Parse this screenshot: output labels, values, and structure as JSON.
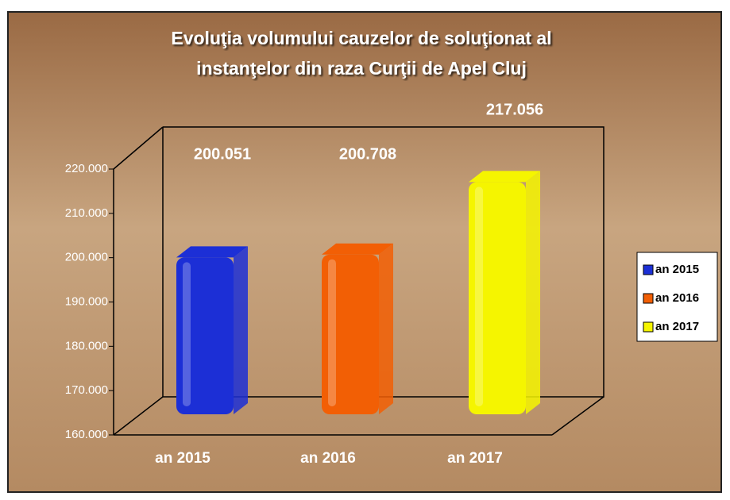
{
  "chart_data": {
    "type": "bar",
    "title": [
      "Evoluţia volumului cauzelor de soluţionat al",
      "instanţelor din raza Curţii de Apel Cluj"
    ],
    "categories": [
      "an 2015",
      "an 2016",
      "an 2017"
    ],
    "values": [
      200051,
      200708,
      217056
    ],
    "value_labels": [
      "200.051",
      "200.708",
      "217.056"
    ],
    "colors": [
      "#1c2fd6",
      "#f25f05",
      "#f5f500"
    ],
    "ylim": [
      160000,
      220000
    ],
    "yticks": [
      {
        "value": 160000,
        "label": "160.000"
      },
      {
        "value": 170000,
        "label": "170.000"
      },
      {
        "value": 180000,
        "label": "180.000"
      },
      {
        "value": 190000,
        "label": "190.000"
      },
      {
        "value": 200000,
        "label": "200.000"
      },
      {
        "value": 210000,
        "label": "210.000"
      },
      {
        "value": 220000,
        "label": "220.000"
      }
    ],
    "legend": "right"
  }
}
